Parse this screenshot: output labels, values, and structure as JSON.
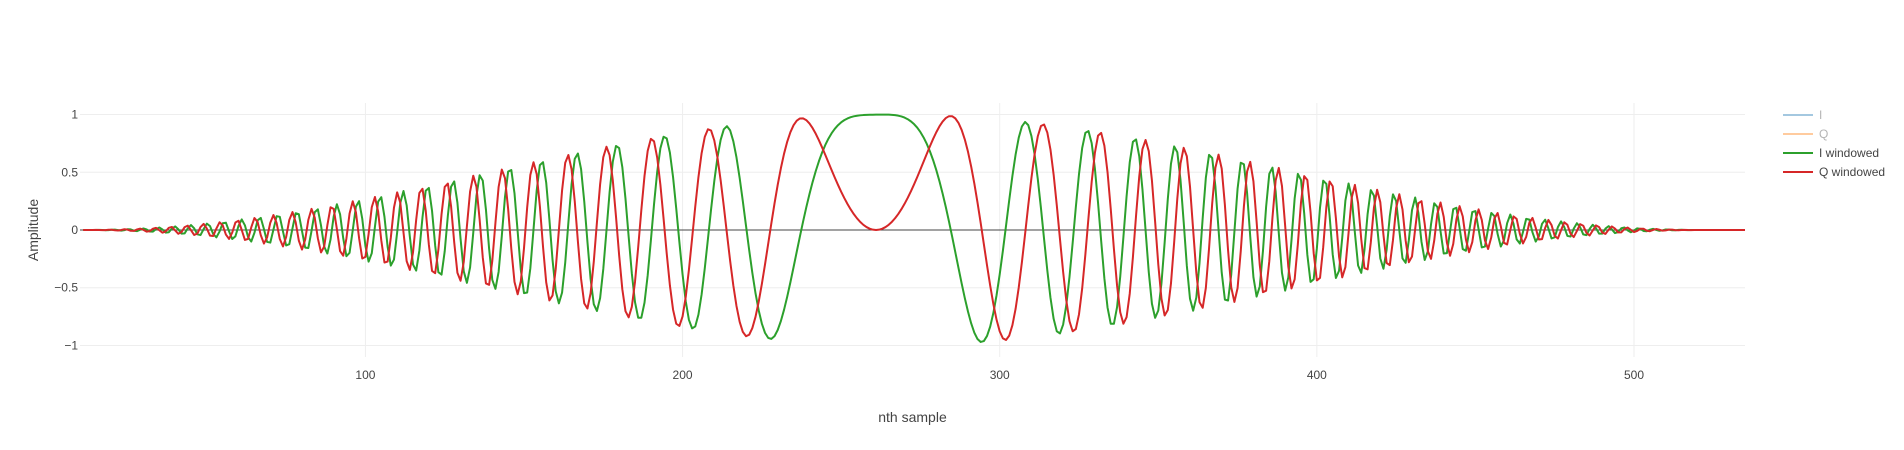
{
  "chart_data": {
    "type": "line",
    "title": "",
    "xlabel": "nth sample",
    "ylabel": "Amplitude",
    "xlim": [
      10,
      535
    ],
    "ylim": [
      -1.1,
      1.1
    ],
    "grid": true,
    "legend": "top-right",
    "x_ticks": [
      {
        "value": 100,
        "label": "100"
      },
      {
        "value": 200,
        "label": "200"
      },
      {
        "value": 300,
        "label": "300"
      },
      {
        "value": 400,
        "label": "400"
      },
      {
        "value": 500,
        "label": "500"
      }
    ],
    "y_ticks": [
      {
        "value": 1,
        "label": "1"
      },
      {
        "value": 0.5,
        "label": "0.5"
      },
      {
        "value": 0,
        "label": "0"
      },
      {
        "value": -0.5,
        "label": "−0.5"
      },
      {
        "value": -1,
        "label": "−1"
      }
    ],
    "signal": {
      "kind": "linear chirp, Hann-windowed",
      "n_samples": 512,
      "first_sample": 11,
      "center_sample": 261,
      "chirp_coefficient": 0.0009
    },
    "series": [
      {
        "name": "I",
        "color": "#1f77b4",
        "opacity": 0.4,
        "visible": false
      },
      {
        "name": "Q",
        "color": "#ff7f0e",
        "opacity": 0.4,
        "visible": false
      },
      {
        "name": "I windowed",
        "color": "#2ca02c",
        "opacity": 1.0,
        "visible": true
      },
      {
        "name": "Q windowed",
        "color": "#d62728",
        "opacity": 1.0,
        "visible": true
      }
    ]
  }
}
